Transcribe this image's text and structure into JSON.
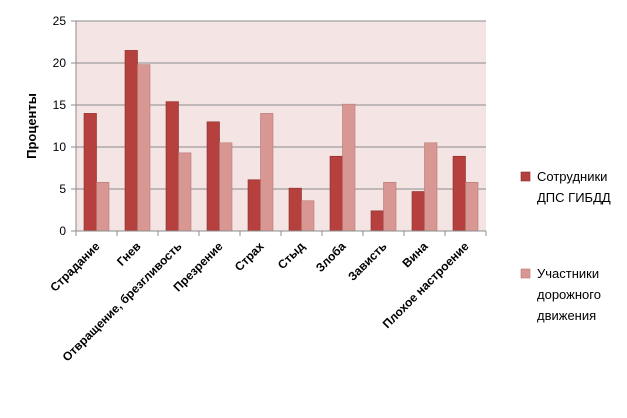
{
  "chart_data": {
    "type": "bar",
    "ylabel": "Проценты",
    "ylim": [
      0,
      25
    ],
    "yticks": [
      0,
      5,
      10,
      15,
      20,
      25
    ],
    "grid": true,
    "legend_position": "right",
    "categories": [
      "Страдание",
      "Гнев",
      "Отвращение, брезгливость",
      "Презрение",
      "Страх",
      "Стыд",
      "Злоба",
      "Зависть",
      "Вина",
      "Плохое настроение"
    ],
    "series": [
      {
        "name_lines": [
          "Сотрудники",
          "ДПС ГИБДД"
        ],
        "color": "#b5403d",
        "values": [
          14.0,
          21.5,
          15.4,
          13.0,
          6.1,
          5.1,
          8.9,
          2.4,
          4.7,
          8.9
        ]
      },
      {
        "name_lines": [
          "Участники",
          "дорожного",
          "движения"
        ],
        "color": "#d99794",
        "values": [
          5.8,
          19.8,
          9.3,
          10.5,
          14.0,
          3.6,
          15.1,
          5.8,
          10.5,
          5.8
        ]
      }
    ],
    "plot_background": "#f4e4e4"
  }
}
